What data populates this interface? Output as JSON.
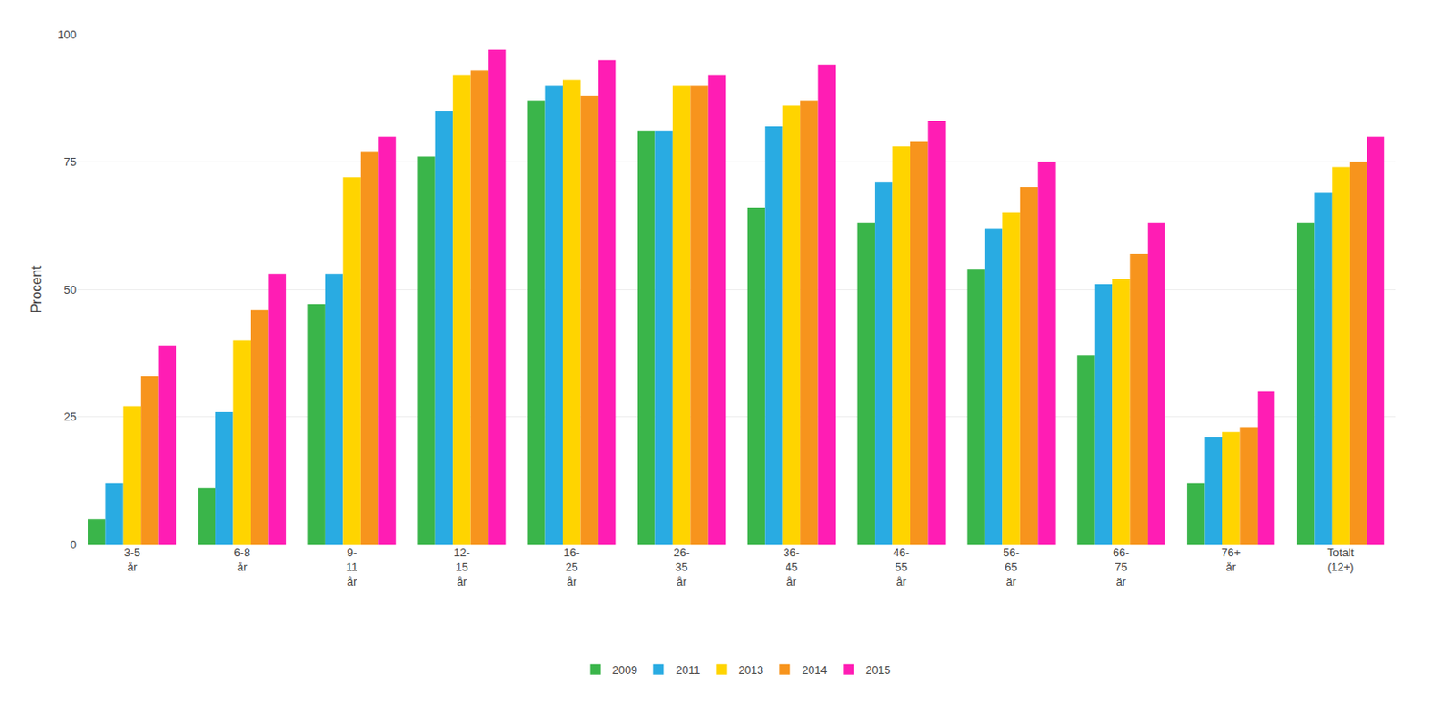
{
  "chart_data": {
    "type": "bar",
    "y_label": "Procent",
    "categories": [
      "3-5\når",
      "6-8\når",
      "9-\n11\når",
      "12-\n15\når",
      "16-\n25\når",
      "26-\n35\når",
      "36-\n45\når",
      "46-\n55\når",
      "56-\n65\när",
      "66-\n75\när",
      "76+\når",
      "Totalt\n(12+)"
    ],
    "series": [
      {
        "name": "2009",
        "color": "#3ab54a",
        "values": [
          5,
          11,
          47,
          76,
          87,
          81,
          66,
          63,
          54,
          37,
          12,
          63
        ]
      },
      {
        "name": "2011",
        "color": "#29abe2",
        "values": [
          12,
          26,
          53,
          85,
          90,
          81,
          82,
          71,
          62,
          51,
          21,
          69
        ]
      },
      {
        "name": "2013",
        "color": "#ffd400",
        "values": [
          27,
          40,
          72,
          92,
          91,
          90,
          86,
          78,
          65,
          52,
          22,
          74
        ]
      },
      {
        "name": "2014",
        "color": "#f7941d",
        "values": [
          33,
          46,
          77,
          93,
          88,
          90,
          87,
          79,
          70,
          57,
          23,
          75
        ]
      },
      {
        "name": "2015",
        "color": "#ff1db4",
        "values": [
          39,
          53,
          80,
          97,
          95,
          92,
          94,
          83,
          75,
          63,
          30,
          80
        ]
      }
    ],
    "ylim": [
      0,
      100
    ],
    "yticks": [
      0,
      25,
      50,
      75,
      100
    ],
    "grid": true,
    "legend": "bottom"
  }
}
